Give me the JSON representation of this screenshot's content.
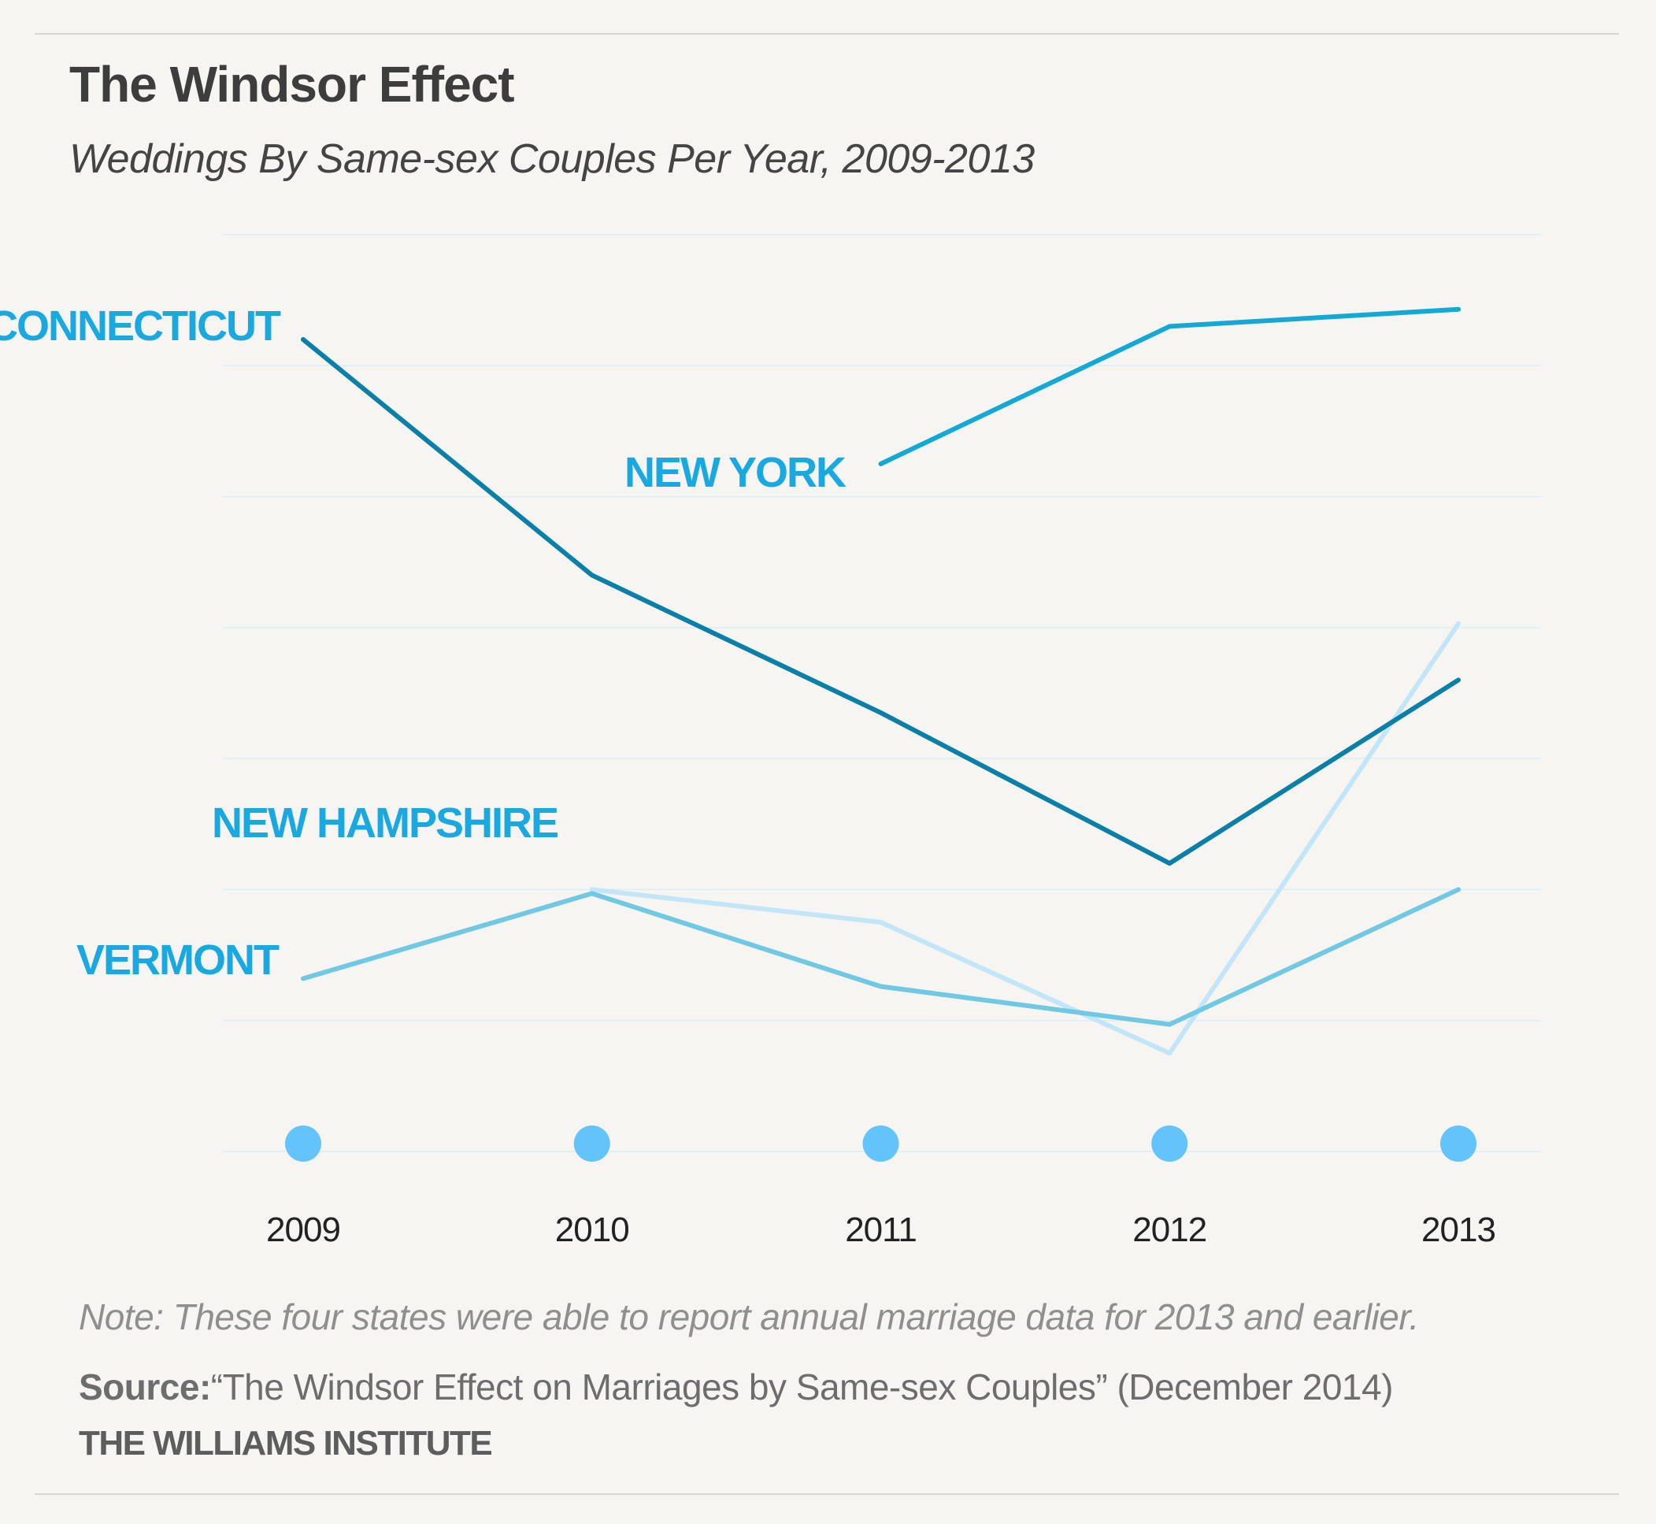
{
  "title": "The Windsor Effect",
  "subtitle": "Weddings By Same-sex Couples Per Year, 2009-2013",
  "note": "Note: These four states were able to report annual marriage data for 2013 and earlier.",
  "source": {
    "label": "Source:",
    "text": "“The Windsor Effect on Marriages by Same-sex Couples”  (December 2014)"
  },
  "organization": "THE WILLIAMS INSTITUTE",
  "chart_data": {
    "type": "line",
    "x": [
      "2009",
      "2010",
      "2011",
      "2012",
      "2013"
    ],
    "ylim": [
      0,
      7
    ],
    "grid": true,
    "axis_value_labels": false,
    "legend_placement": "inline-labels",
    "series": [
      {
        "name": "CONNECTICUT",
        "color": "#0a80a8",
        "values": [
          6.2,
          4.4,
          3.35,
          2.2,
          3.6
        ]
      },
      {
        "name": "NEW YORK",
        "color": "#14a8d4",
        "values": [
          null,
          null,
          5.25,
          6.3,
          6.43
        ]
      },
      {
        "name": "NEW HAMPSHIRE",
        "color": "#c2e6f8",
        "values": [
          null,
          2.0,
          1.75,
          0.75,
          4.03
        ]
      },
      {
        "name": "VERMONT",
        "color": "#70c8e2",
        "values": [
          1.32,
          1.97,
          1.26,
          0.97,
          2.0
        ]
      }
    ]
  },
  "colors": {
    "label": "#1aa8e0",
    "marker": "#63c3fb",
    "grid": "#dbeef7"
  }
}
